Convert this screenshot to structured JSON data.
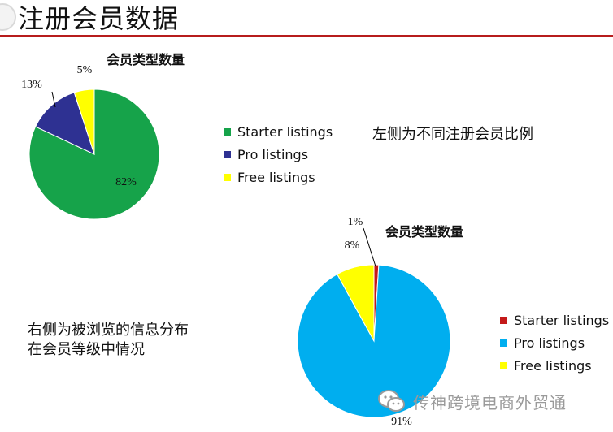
{
  "page_title": "注册会员数据",
  "note_left": "左侧为不同注册会员比例",
  "note_right_line1": "右侧为被浏览的信息分布",
  "note_right_line2": "在会员等级中情况",
  "footer": {
    "text": "传神跨境电商外贸通"
  },
  "colors": {
    "starter_chart1": "#16a34a",
    "pro_chart1": "#2e3192",
    "starter_chart2": "#c41a1a",
    "pro_chart2": "#00aeef",
    "free": "#ffff00",
    "title_rule": "#b71c1c"
  },
  "icons": [
    "wechat-icon"
  ],
  "chart_data": [
    {
      "type": "pie",
      "title": "会员类型数量",
      "categories": [
        "Starter listings",
        "Pro listings",
        "Free listings"
      ],
      "values": [
        82,
        13,
        5
      ],
      "labels": [
        "82%",
        "13%",
        "5%"
      ],
      "legend": "right"
    },
    {
      "type": "pie",
      "title": "会员类型数量",
      "categories": [
        "Starter listings",
        "Pro listings",
        "Free listings"
      ],
      "values": [
        1,
        91,
        8
      ],
      "labels": [
        "1%",
        "91%",
        "8%"
      ],
      "legend": "right"
    }
  ]
}
